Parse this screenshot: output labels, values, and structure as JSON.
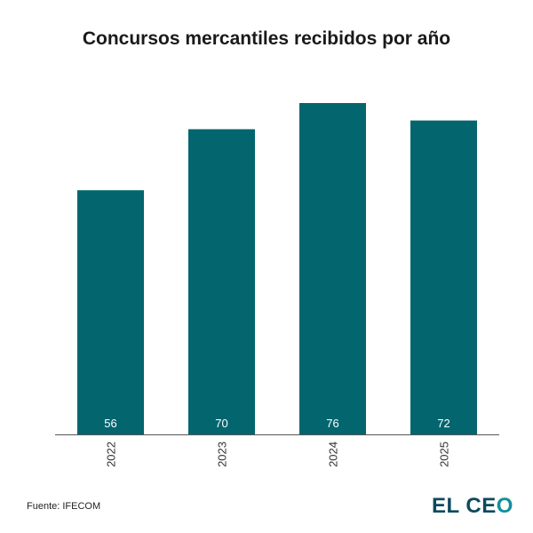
{
  "chart_data": {
    "type": "bar",
    "title": "Concursos mercantiles recibidos por año",
    "categories": [
      "2022",
      "2023",
      "2024",
      "2025"
    ],
    "values": [
      56,
      70,
      76,
      72
    ],
    "xlabel": "",
    "ylabel": "",
    "ylim": [
      0,
      76
    ],
    "grid": false,
    "bar_color": "#03666f",
    "data_labels": true
  },
  "source": "Fuente: IFECOM",
  "logo": {
    "text": "EL CEO",
    "part1": "EL CE",
    "part2": "O"
  }
}
